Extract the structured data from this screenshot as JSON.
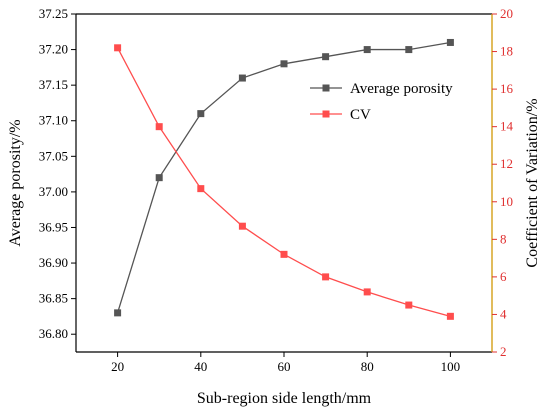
{
  "chart_data": {
    "type": "line",
    "title": "",
    "xlabel": "Sub-region side length/mm",
    "ylabel_left": "Average porosity/%",
    "ylabel_right": "Coefficient of Variation/%",
    "xlim": [
      10,
      110
    ],
    "xticks": [
      20,
      40,
      60,
      80,
      100
    ],
    "ylim_left": [
      36.775,
      37.25
    ],
    "yticks_left": [
      "36.80",
      "36.85",
      "36.90",
      "36.95",
      "37.00",
      "37.05",
      "37.10",
      "37.15",
      "37.20",
      "37.25"
    ],
    "ylim_right": [
      2,
      20
    ],
    "yticks_right": [
      2,
      4,
      6,
      8,
      10,
      12,
      14,
      16,
      18,
      20
    ],
    "grid": false,
    "legend_position": "top-right",
    "series": [
      {
        "name": "Average porosity",
        "axis": "left",
        "color": "#555555",
        "marker": "square",
        "x": [
          20,
          30,
          40,
          50,
          60,
          70,
          80,
          90,
          100
        ],
        "y": [
          36.83,
          37.02,
          37.11,
          37.16,
          37.18,
          37.19,
          37.2,
          37.2,
          37.21
        ]
      },
      {
        "name": "CV",
        "axis": "right",
        "color": "#ff4d4d",
        "marker": "square",
        "x": [
          20,
          30,
          40,
          50,
          60,
          70,
          80,
          90,
          100
        ],
        "y": [
          18.2,
          14.0,
          10.7,
          8.7,
          7.2,
          6.0,
          5.2,
          4.5,
          3.9
        ]
      }
    ],
    "axis_colors": {
      "left": "#000000",
      "right": "#e03030",
      "bottom": "#000000",
      "right_spine": "#d4a017"
    }
  }
}
